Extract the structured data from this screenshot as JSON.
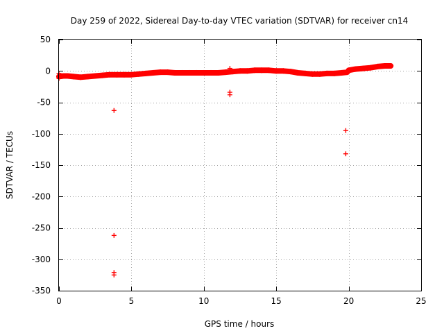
{
  "chart_data": {
    "type": "scatter",
    "title": "Day 259 of 2022, Sidereal Day-to-day VTEC variation (SDTVAR) for receiver cn14",
    "xlabel": "GPS time / hours",
    "ylabel": "SDTVAR / TECUs",
    "xlim": [
      0,
      25
    ],
    "ylim": [
      -350,
      50
    ],
    "xticks": [
      0,
      5,
      10,
      15,
      20,
      25
    ],
    "yticks": [
      50,
      0,
      -50,
      -100,
      -150,
      -200,
      -250,
      -300,
      -350
    ],
    "grid": true,
    "legend": "none",
    "series": [
      {
        "name": "SDTVAR",
        "color": "#ff0000",
        "marker": "plus",
        "band": [
          [
            0.0,
            -9
          ],
          [
            0.3,
            -8
          ],
          [
            0.6,
            -8
          ],
          [
            1.0,
            -9
          ],
          [
            1.5,
            -10
          ],
          [
            2.0,
            -9
          ],
          [
            2.5,
            -8
          ],
          [
            3.0,
            -7
          ],
          [
            3.5,
            -6
          ],
          [
            4.0,
            -6
          ],
          [
            4.5,
            -6
          ],
          [
            5.0,
            -6
          ],
          [
            5.5,
            -5
          ],
          [
            6.0,
            -4
          ],
          [
            6.5,
            -3
          ],
          [
            7.0,
            -2
          ],
          [
            7.5,
            -2
          ],
          [
            8.0,
            -3
          ],
          [
            8.5,
            -3
          ],
          [
            9.0,
            -3
          ],
          [
            9.5,
            -3
          ],
          [
            10.0,
            -3
          ],
          [
            10.5,
            -3
          ],
          [
            11.0,
            -3
          ],
          [
            11.5,
            -2
          ],
          [
            12.0,
            -1
          ],
          [
            12.5,
            0
          ],
          [
            13.0,
            0
          ],
          [
            13.5,
            1
          ],
          [
            14.0,
            1
          ],
          [
            14.5,
            1
          ],
          [
            15.0,
            0
          ],
          [
            15.5,
            0
          ],
          [
            16.0,
            -1
          ],
          [
            16.5,
            -3
          ],
          [
            17.0,
            -4
          ],
          [
            17.5,
            -5
          ],
          [
            18.0,
            -5
          ],
          [
            18.5,
            -4
          ],
          [
            19.0,
            -4
          ],
          [
            19.5,
            -3
          ],
          [
            19.9,
            -2
          ],
          [
            20.0,
            1
          ],
          [
            20.5,
            3
          ],
          [
            21.0,
            4
          ],
          [
            21.5,
            5
          ],
          [
            22.0,
            7
          ],
          [
            22.5,
            8
          ],
          [
            22.9,
            8
          ]
        ],
        "outliers": [
          [
            3.8,
            -63
          ],
          [
            3.8,
            -262
          ],
          [
            3.8,
            -321
          ],
          [
            3.8,
            -325
          ],
          [
            11.8,
            4
          ],
          [
            11.8,
            -34
          ],
          [
            11.8,
            -38
          ],
          [
            19.8,
            -95
          ],
          [
            19.8,
            -132
          ],
          [
            0.0,
            -12
          ],
          [
            0.0,
            -4
          ]
        ]
      }
    ]
  }
}
